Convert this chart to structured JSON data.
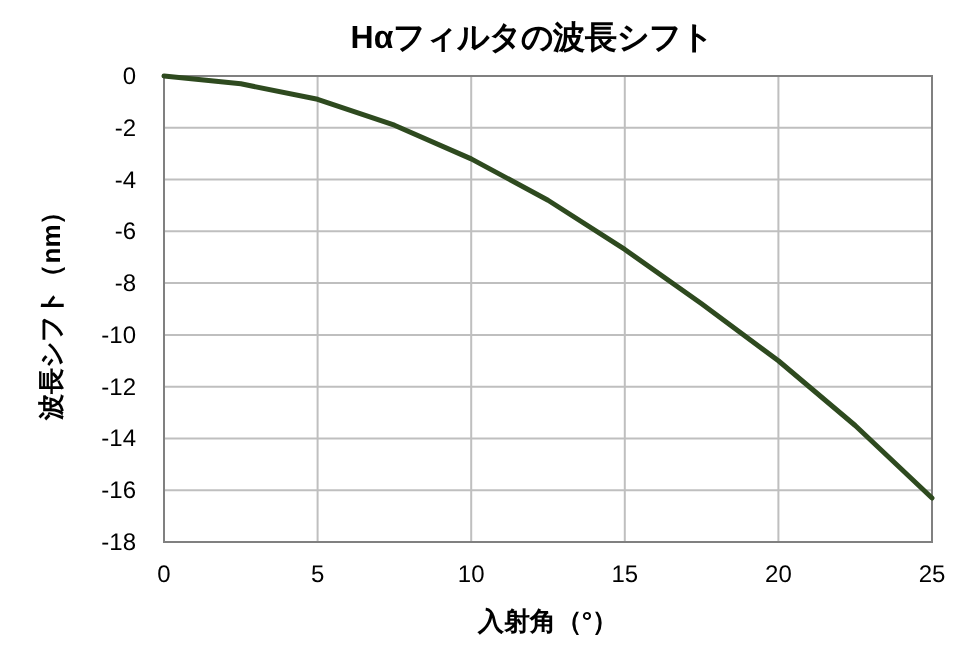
{
  "chart_data": {
    "type": "line",
    "title": "Hαフィルタの波長シフト",
    "xlabel": "入射角（°）",
    "ylabel": "波長シフト（nm）",
    "series": [
      {
        "color": "#2e4a1f",
        "x": [
          0,
          2.5,
          5,
          7.5,
          10,
          12.5,
          15,
          17.5,
          20,
          22.5,
          25
        ],
        "values": [
          0,
          -0.3,
          -0.9,
          -1.9,
          -3.2,
          -4.8,
          -6.7,
          -8.8,
          -11.0,
          -13.5,
          -16.3
        ]
      }
    ],
    "xlim": [
      0,
      25
    ],
    "ylim": [
      -18,
      0
    ],
    "xticks": [
      0,
      5,
      10,
      15,
      20,
      25
    ],
    "yticks": [
      0,
      -2,
      -4,
      -6,
      -8,
      -10,
      -12,
      -14,
      -16,
      -18
    ],
    "grid": true
  }
}
